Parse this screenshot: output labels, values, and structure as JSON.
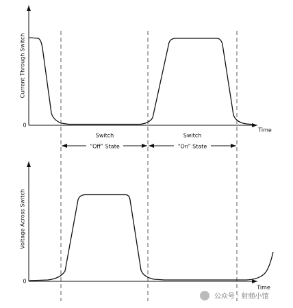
{
  "plots": [
    {
      "y_label": "Current Through Switch",
      "zero": "0",
      "x_label": "Time"
    },
    {
      "y_label": "Voltage Across Switch",
      "zero": "0",
      "x_label": "Time"
    }
  ],
  "states": [
    {
      "line1": "Switch",
      "line2": "“Off” State"
    },
    {
      "line1": "Switch",
      "line2": "“On” State"
    }
  ],
  "watermark": "公众号 · 射频小馆"
}
